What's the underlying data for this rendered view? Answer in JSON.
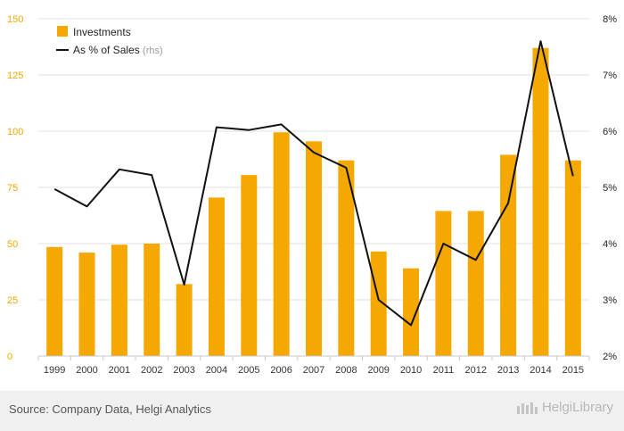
{
  "chart_data": {
    "type": "bar+line",
    "categories": [
      "1999",
      "2000",
      "2001",
      "2002",
      "2003",
      "2004",
      "2005",
      "2006",
      "2007",
      "2008",
      "2009",
      "2010",
      "2011",
      "2012",
      "2013",
      "2014",
      "2015"
    ],
    "series": [
      {
        "name": "Investments",
        "type": "bar",
        "axis": "left",
        "color": "#f5a800",
        "values": [
          48.5,
          46,
          49.5,
          50,
          32,
          70.5,
          80.5,
          99.5,
          95.5,
          87,
          46.5,
          39,
          64.5,
          64.5,
          89.5,
          137,
          87
        ]
      },
      {
        "name": "As % of Sales",
        "type": "line",
        "axis": "right",
        "color": "#111111",
        "values": [
          4.97,
          4.66,
          5.32,
          5.22,
          3.27,
          6.07,
          6.02,
          6.12,
          5.62,
          5.35,
          3.0,
          2.55,
          4.0,
          3.71,
          4.72,
          7.6,
          5.2
        ]
      }
    ],
    "legend": {
      "position": "top-left",
      "items": [
        {
          "label": "Investments",
          "suffix": ""
        },
        {
          "label": "As % of Sales",
          "suffix": "(rhs)"
        }
      ]
    },
    "y_left": {
      "min": 0,
      "max": 150,
      "ticks": [
        "0",
        "25",
        "50",
        "75",
        "100",
        "125",
        "150"
      ],
      "tick_color": "#f5a800"
    },
    "y_right": {
      "min": 2,
      "max": 8,
      "ticks": [
        "2%",
        "3%",
        "4%",
        "5%",
        "6%",
        "7%",
        "8%"
      ]
    },
    "grid": true
  },
  "footer": {
    "source": "Source: Company Data, Helgi Analytics",
    "brand": "HelgiLibrary"
  }
}
